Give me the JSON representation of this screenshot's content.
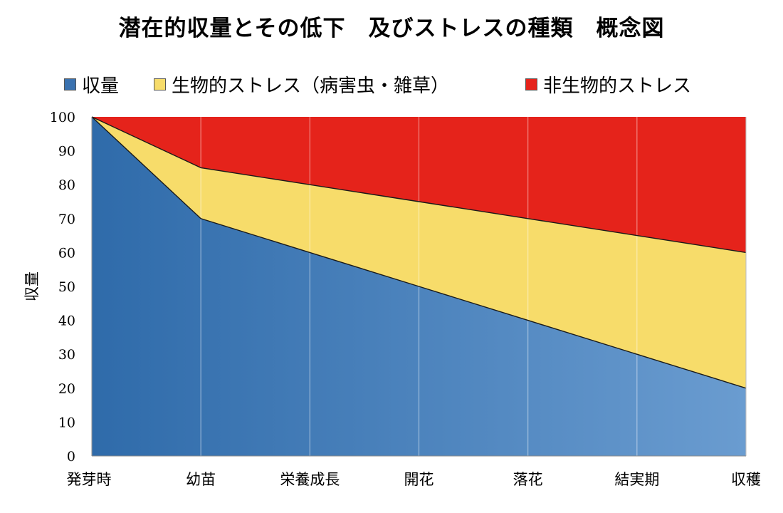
{
  "chart_data": {
    "type": "area",
    "title": "潜在的収量とその低下　及びストレスの種類　概念図",
    "ylabel": "収量",
    "xlabel": "",
    "categories": [
      "発芽時",
      "幼苗",
      "栄養成長",
      "開花",
      "落花",
      "結実期",
      "収穫"
    ],
    "ylim": [
      0,
      100
    ],
    "yticks": [
      0,
      10,
      20,
      30,
      40,
      50,
      60,
      70,
      80,
      90,
      100
    ],
    "grid": true,
    "legend_position": "top",
    "stacked": true,
    "series": [
      {
        "name": "収量",
        "color": "#3A72B0",
        "values": [
          100,
          70,
          60,
          50,
          40,
          30,
          20
        ]
      },
      {
        "name": "生物的ストレス（病害虫・雑草）",
        "color": "#F7DC6A",
        "values": [
          0,
          15,
          20,
          25,
          30,
          35,
          40
        ]
      },
      {
        "name": "非生物的ストレス",
        "color": "#E5231B",
        "values": [
          0,
          15,
          20,
          25,
          30,
          35,
          40
        ]
      }
    ]
  }
}
